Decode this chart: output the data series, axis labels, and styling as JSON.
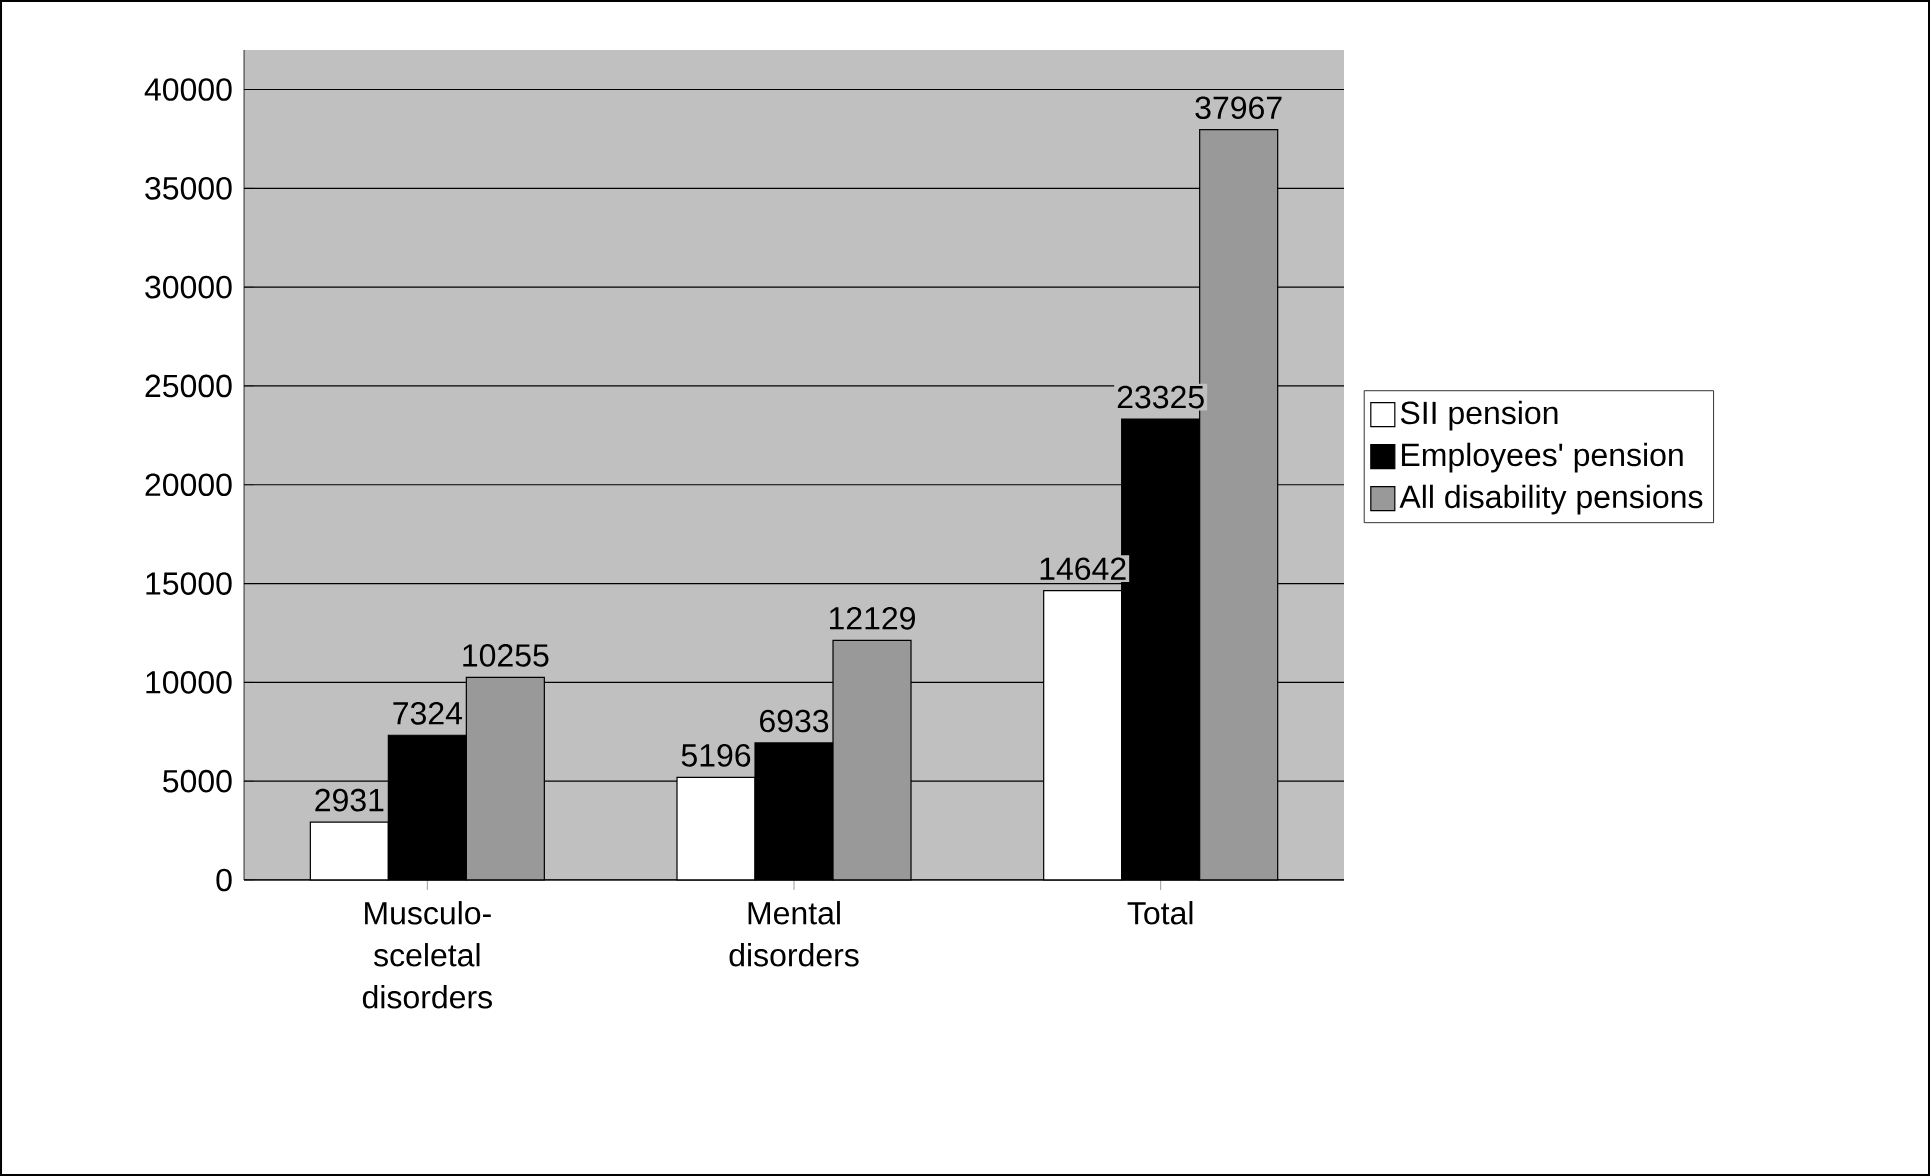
{
  "chart_data": {
    "type": "bar",
    "categories": [
      "Musculo-sceletal disorders",
      "Mental disorders",
      "Total"
    ],
    "series": [
      {
        "name": "SII pension",
        "color": "#ffffff",
        "values": [
          2931,
          5196,
          14642
        ]
      },
      {
        "name": "Employees' pension",
        "color": "#000000",
        "values": [
          7324,
          6933,
          23325
        ]
      },
      {
        "name": "All disability pensions",
        "color": "#999999",
        "values": [
          10255,
          12129,
          37967
        ]
      }
    ],
    "ylim": [
      0,
      42000
    ],
    "yticks": [
      0,
      5000,
      10000,
      15000,
      20000,
      25000,
      30000,
      35000,
      40000
    ],
    "grid": "y",
    "legend": "right",
    "data_labels": true
  }
}
